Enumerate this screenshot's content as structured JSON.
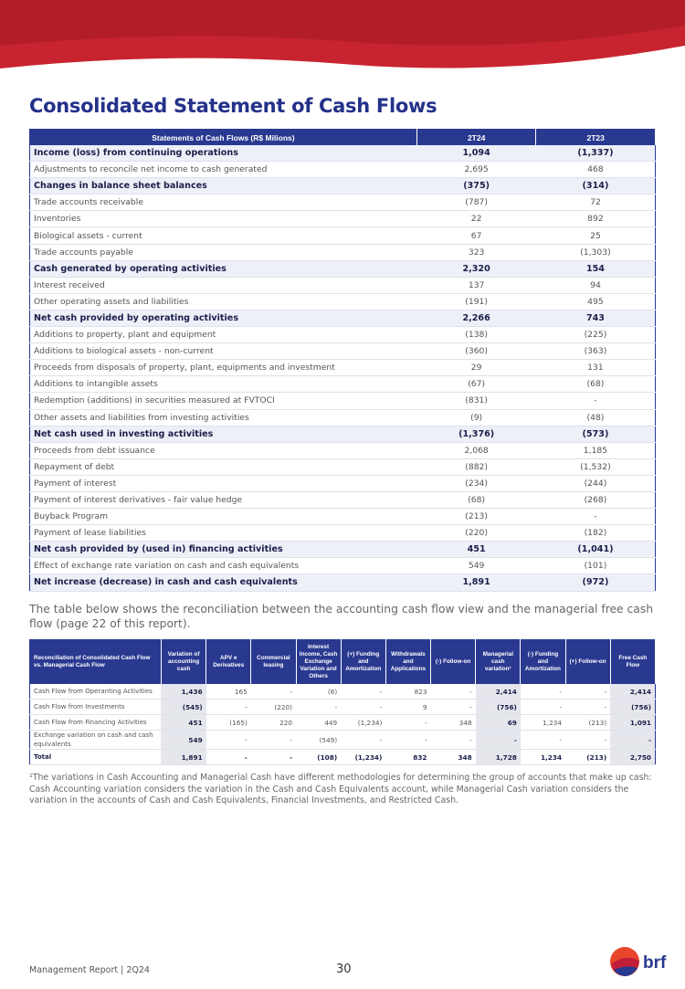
{
  "title": "Consolidated Statement of Cash Flows",
  "table1": {
    "header": [
      "Statements of Cash Flows (R$ Milions)",
      "2T24",
      "2T23"
    ],
    "rows": [
      [
        "Income (loss) from continuing operations",
        "1,094",
        "(1,337)"
      ],
      [
        "Adjustments to reconcile net income to cash generated",
        "2,695",
        "468"
      ],
      [
        "Changes in balance sheet balances",
        "(375)",
        "(314)"
      ],
      [
        "Trade accounts receivable",
        "(787)",
        "72"
      ],
      [
        "Inventories",
        "22",
        "892"
      ],
      [
        "Biological assets - current",
        "67",
        "25"
      ],
      [
        "Trade accounts payable",
        "323",
        "(1,303)"
      ],
      [
        "Cash generated by operating activities",
        "2,320",
        "154"
      ],
      [
        "Interest received",
        "137",
        "94"
      ],
      [
        "Other operating assets and liabilities",
        "(191)",
        "495"
      ],
      [
        "Net cash provided by operating activities",
        "2,266",
        "743"
      ],
      [
        "Additions to property, plant and equipment",
        "(138)",
        "(225)"
      ],
      [
        "Additions to biological assets - non-current",
        "(360)",
        "(363)"
      ],
      [
        "Proceeds from disposals of property, plant, equipments and investment",
        "29",
        "131"
      ],
      [
        "Additions to intangible assets",
        "(67)",
        "(68)"
      ],
      [
        "Redemption (additions) in securities measured at FVTOCI",
        "(831)",
        "-"
      ],
      [
        "Other assets and liabilities from investing activities",
        "(9)",
        "(48)"
      ],
      [
        "Net cash used in investing activities",
        "(1,376)",
        "(573)"
      ],
      [
        "Proceeds from debt issuance",
        "2,068",
        "1,185"
      ],
      [
        "Repayment of debt",
        "(882)",
        "(1,532)"
      ],
      [
        "Payment of interest",
        "(234)",
        "(244)"
      ],
      [
        "Payment of interest derivatives - fair value hedge",
        "(68)",
        "(268)"
      ],
      [
        "Buyback Program",
        "(213)",
        "-"
      ],
      [
        "Payment of lease liabilities",
        "(220)",
        "(182)"
      ],
      [
        "Net cash provided by (used in) financing activities",
        "451",
        "(1,041)"
      ],
      [
        "Effect of exchange rate variation on cash and cash equivalents",
        "549",
        "(101)"
      ],
      [
        "Net increase (decrease) in cash and cash equivalents",
        "1,891",
        "(972)"
      ]
    ]
  },
  "intro": "The table below shows the reconciliation between the accounting cash flow view and the managerial free cash flow (page 22 of this report).",
  "table2": {
    "header": [
      "Reconciliation of Consolidated Cash Flow vs. Managerial Cash Flow",
      "Variation of accounting cash",
      "APV e Derivatives",
      "Commercial leasing",
      "Interest Income, Cash Exchange Variation and Others",
      "(+) Funding and Amortization",
      "Withdrawals and Applications",
      "(-) Follow-on",
      "Managerial cash variation¹",
      "(-) Funding and Amortization",
      "(+) Follow-on",
      "Free Cash Flow"
    ],
    "rows": [
      [
        "Cash Flow from Operanting Activities",
        "1,436",
        "165",
        "-",
        "(8)",
        "-",
        "823",
        "-",
        "2,414",
        "-",
        "-",
        "2,414"
      ],
      [
        "Cash Flow from Investments",
        "(545)",
        "-",
        "(220)",
        "-",
        "-",
        "9",
        "-",
        "(756)",
        "-",
        "-",
        "(756)"
      ],
      [
        "Cash Flow from Financing Activities",
        "451",
        "(165)",
        "220",
        "449",
        "(1,234)",
        "-",
        "348",
        "69",
        "1,234",
        "(213)",
        "1,091"
      ],
      [
        "Exchange variation on cash and cash equivalents",
        "549",
        "-",
        "-",
        "(549)",
        "-",
        "-",
        "-",
        "-",
        "-",
        "-",
        "-"
      ],
      [
        "Total",
        "1,891",
        "-",
        "-",
        "(108)",
        "(1,234)",
        "832",
        "348",
        "1,728",
        "1,234",
        "(213)",
        "2,750"
      ]
    ]
  },
  "footnote": "¹The variations in Cash Accounting and Managerial Cash have different methodologies for determining the group of accounts that make up cash: Cash Accounting variation considers the variation in the Cash and Cash Equivalents account, while Managerial Cash variation considers the variation in the accounts of Cash and Cash Equivalents, Financial Investments, and Restricted Cash.",
  "footer": {
    "left": "Management Report | 2Q24",
    "page": "30",
    "logo": "brf"
  }
}
